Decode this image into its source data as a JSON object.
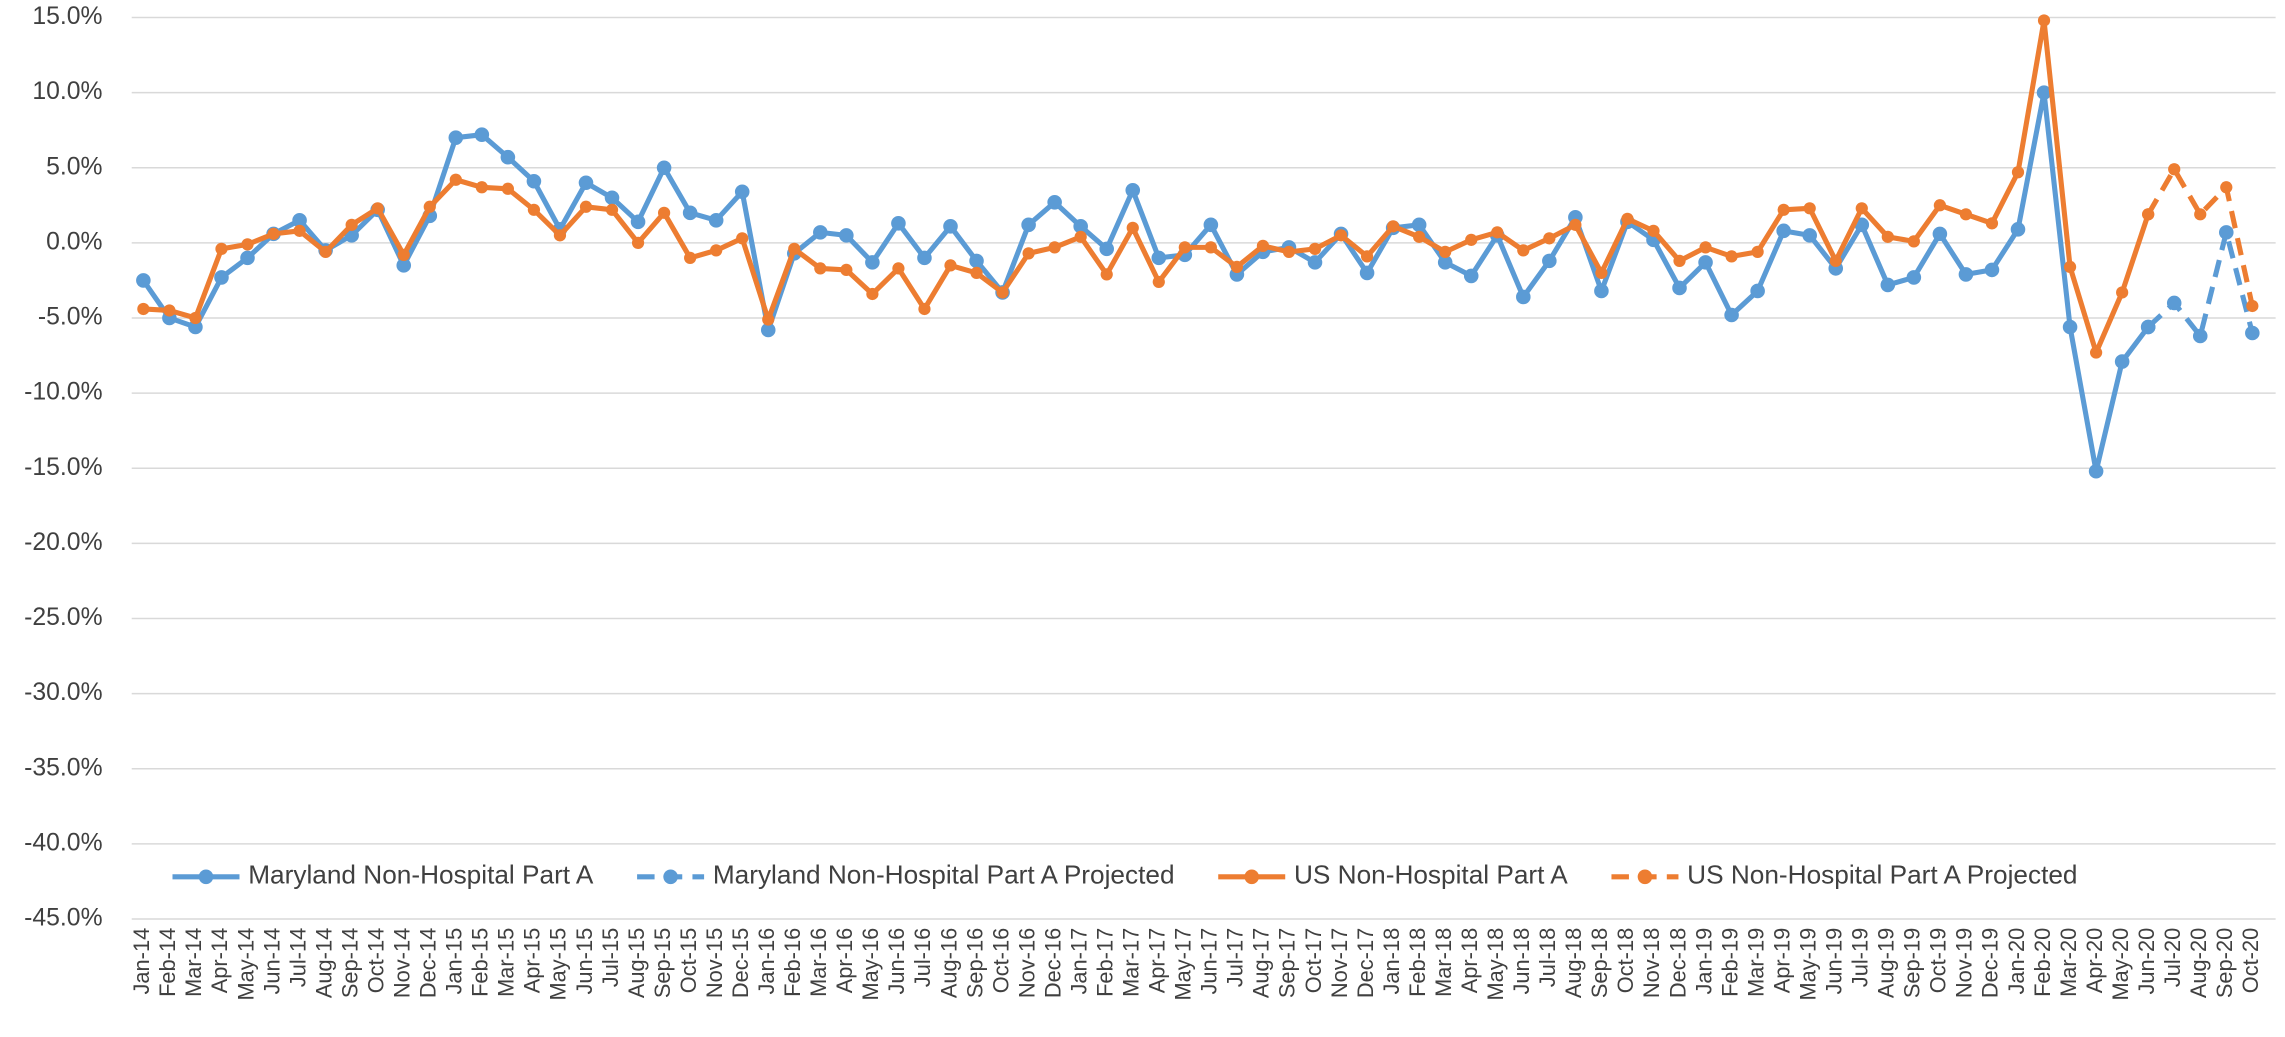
{
  "chart_data": {
    "type": "line",
    "categories": [
      "Jan-14",
      "Feb-14",
      "Mar-14",
      "Apr-14",
      "May-14",
      "Jun-14",
      "Jul-14",
      "Aug-14",
      "Sep-14",
      "Oct-14",
      "Nov-14",
      "Dec-14",
      "Jan-15",
      "Feb-15",
      "Mar-15",
      "Apr-15",
      "May-15",
      "Jun-15",
      "Jul-15",
      "Aug-15",
      "Sep-15",
      "Oct-15",
      "Nov-15",
      "Dec-15",
      "Jan-16",
      "Feb-16",
      "Mar-16",
      "Apr-16",
      "May-16",
      "Jun-16",
      "Jul-16",
      "Aug-16",
      "Sep-16",
      "Oct-16",
      "Nov-16",
      "Dec-16",
      "Jan-17",
      "Feb-17",
      "Mar-17",
      "Apr-17",
      "May-17",
      "Jun-17",
      "Jul-17",
      "Aug-17",
      "Sep-17",
      "Oct-17",
      "Nov-17",
      "Dec-17",
      "Jan-18",
      "Feb-18",
      "Mar-18",
      "Apr-18",
      "May-18",
      "Jun-18",
      "Jul-18",
      "Aug-18",
      "Sep-18",
      "Oct-18",
      "Nov-18",
      "Dec-18",
      "Jan-19",
      "Feb-19",
      "Mar-19",
      "Apr-19",
      "May-19",
      "Jun-19",
      "Jul-19",
      "Aug-19",
      "Sep-19",
      "Oct-19",
      "Nov-19",
      "Dec-19",
      "Jan-20",
      "Feb-20",
      "Mar-20",
      "Apr-20",
      "May-20",
      "Jun-20",
      "Jul-20",
      "Aug-20",
      "Sep-20",
      "Oct-20"
    ],
    "series": [
      {
        "name": "Maryland Non-Hospital Part A",
        "color": "#5b9bd5",
        "line_style": "solid",
        "values": [
          -2.5,
          -5.0,
          -5.6,
          -2.3,
          -1.0,
          0.6,
          1.5,
          -0.5,
          0.5,
          2.2,
          -1.5,
          1.8,
          7.0,
          7.2,
          5.7,
          4.1,
          0.9,
          4.0,
          3.0,
          1.4,
          5.0,
          2.0,
          1.5,
          3.4,
          -5.8,
          -0.7,
          0.7,
          0.5,
          -1.3,
          1.3,
          -1.0,
          1.1,
          -1.2,
          -3.3,
          1.2,
          2.7,
          1.1,
          -0.4,
          3.5,
          -1.0,
          -0.8,
          1.2,
          -2.1,
          -0.6,
          -0.3,
          -1.3,
          0.6,
          -2.0,
          1.0,
          1.2,
          -1.3,
          -2.2,
          0.5,
          -3.6,
          -1.2,
          1.7,
          -3.2,
          1.4,
          0.2,
          -3.0,
          -1.3,
          -4.8,
          -3.2,
          0.8,
          0.5,
          -1.7,
          1.2,
          -2.8,
          -2.3,
          0.6,
          -2.1,
          -1.8,
          0.9,
          10.0,
          -5.6,
          -15.2,
          -7.9,
          -5.6,
          null,
          null,
          null,
          null
        ]
      },
      {
        "name": "Maryland Non-Hospital Part A Projected",
        "color": "#5b9bd5",
        "line_style": "dashed",
        "values": [
          null,
          null,
          null,
          null,
          null,
          null,
          null,
          null,
          null,
          null,
          null,
          null,
          null,
          null,
          null,
          null,
          null,
          null,
          null,
          null,
          null,
          null,
          null,
          null,
          null,
          null,
          null,
          null,
          null,
          null,
          null,
          null,
          null,
          null,
          null,
          null,
          null,
          null,
          null,
          null,
          null,
          null,
          null,
          null,
          null,
          null,
          null,
          null,
          null,
          null,
          null,
          null,
          null,
          null,
          null,
          null,
          null,
          null,
          null,
          null,
          null,
          null,
          null,
          null,
          null,
          null,
          null,
          null,
          null,
          null,
          null,
          null,
          null,
          null,
          null,
          null,
          null,
          -5.6,
          -4.0,
          -6.2,
          0.7,
          -6.0
        ]
      },
      {
        "name": "US Non-Hospital Part A",
        "color": "#ed7d31",
        "line_style": "solid",
        "values": [
          -4.4,
          -4.5,
          -5.0,
          -0.4,
          -0.1,
          0.6,
          0.8,
          -0.6,
          1.2,
          2.3,
          -0.8,
          2.4,
          4.2,
          3.7,
          3.6,
          2.2,
          0.5,
          2.4,
          2.2,
          0.0,
          2.0,
          -1.0,
          -0.5,
          0.3,
          -5.1,
          -0.4,
          -1.7,
          -1.8,
          -3.4,
          -1.7,
          -4.4,
          -1.5,
          -2.0,
          -3.3,
          -0.7,
          -0.3,
          0.4,
          -2.1,
          1.0,
          -2.6,
          -0.3,
          -0.3,
          -1.6,
          -0.2,
          -0.6,
          -0.4,
          0.5,
          -0.9,
          1.1,
          0.4,
          -0.6,
          0.2,
          0.7,
          -0.5,
          0.3,
          1.2,
          -2.0,
          1.6,
          0.8,
          -1.2,
          -0.3,
          -0.9,
          -0.6,
          2.2,
          2.3,
          -1.2,
          2.3,
          0.4,
          0.1,
          2.5,
          1.9,
          1.3,
          4.7,
          14.8,
          -1.6,
          -7.3,
          -3.3,
          1.9,
          null,
          null,
          null,
          null
        ]
      },
      {
        "name": "US Non-Hospital Part A Projected",
        "color": "#ed7d31",
        "line_style": "dashed",
        "values": [
          null,
          null,
          null,
          null,
          null,
          null,
          null,
          null,
          null,
          null,
          null,
          null,
          null,
          null,
          null,
          null,
          null,
          null,
          null,
          null,
          null,
          null,
          null,
          null,
          null,
          null,
          null,
          null,
          null,
          null,
          null,
          null,
          null,
          null,
          null,
          null,
          null,
          null,
          null,
          null,
          null,
          null,
          null,
          null,
          null,
          null,
          null,
          null,
          null,
          null,
          null,
          null,
          null,
          null,
          null,
          null,
          null,
          null,
          null,
          null,
          null,
          null,
          null,
          null,
          null,
          null,
          null,
          null,
          null,
          null,
          null,
          null,
          null,
          null,
          null,
          null,
          null,
          1.9,
          4.9,
          1.9,
          3.7,
          -4.2
        ]
      }
    ],
    "ylim": [
      -45,
      15
    ],
    "yticks": [
      {
        "value": 15,
        "label": "15.0%"
      },
      {
        "value": 10,
        "label": "10.0%"
      },
      {
        "value": 5,
        "label": "5.0%"
      },
      {
        "value": 0,
        "label": "0.0%"
      },
      {
        "value": -5,
        "label": "-5.0%"
      },
      {
        "value": -10,
        "label": "-10.0%"
      },
      {
        "value": -15,
        "label": "-15.0%"
      },
      {
        "value": -20,
        "label": "-20.0%"
      },
      {
        "value": -25,
        "label": "-25.0%"
      },
      {
        "value": -30,
        "label": "-30.0%"
      },
      {
        "value": -35,
        "label": "-35.0%"
      },
      {
        "value": -40,
        "label": "-40.0%"
      },
      {
        "value": -45,
        "label": "-45.0%"
      }
    ],
    "grid": true,
    "legend": "bottom"
  }
}
